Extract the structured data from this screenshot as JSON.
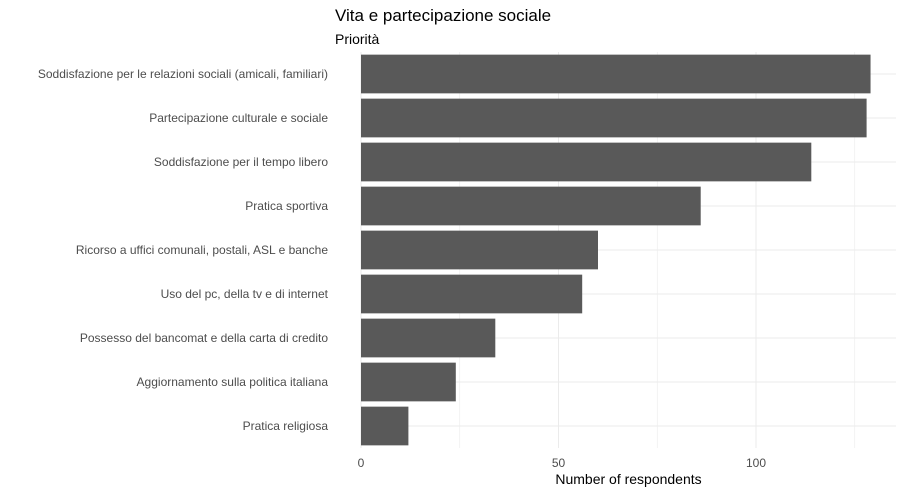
{
  "chart_data": {
    "type": "bar",
    "orientation": "horizontal",
    "title": "Vita e partecipazione sociale",
    "subtitle": "Priorità",
    "xlabel": "Number of respondents",
    "ylabel": "",
    "xlim": [
      0,
      134
    ],
    "xticks": [
      0,
      50,
      100
    ],
    "grid": true,
    "bar_color": "#595959",
    "grid_color": "#ebebeb",
    "categories": [
      "Soddisfazione per le relazioni sociali (amicali, familiari)",
      "Partecipazione culturale e sociale",
      "Soddisfazione per il tempo libero",
      "Pratica sportiva",
      "Ricorso a uffici comunali, postali, ASL e banche",
      "Uso del pc, della tv e di internet",
      "Possesso del bancomat e della carta di credito",
      "Aggiornamento sulla politica italiana",
      "Pratica religiosa"
    ],
    "values": [
      129,
      128,
      114,
      86,
      60,
      56,
      34,
      24,
      12
    ]
  }
}
